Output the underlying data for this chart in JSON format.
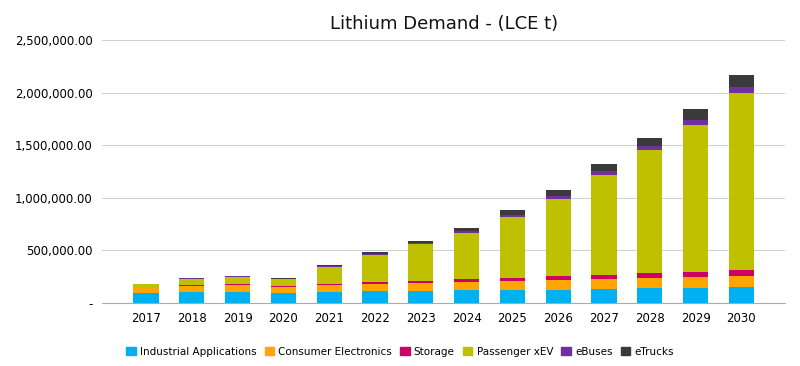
{
  "title": "Lithium Demand - (LCE t)",
  "years": [
    2017,
    2018,
    2019,
    2020,
    2021,
    2022,
    2023,
    2024,
    2025,
    2026,
    2027,
    2028,
    2029,
    2030
  ],
  "categories": [
    "Industrial Applications",
    "Consumer Electronics",
    "Storage",
    "Passenger xEV",
    "eBuses",
    "eTrucks"
  ],
  "colors": [
    "#00b0f0",
    "#ffa500",
    "#cc0066",
    "#bfc000",
    "#7030a0",
    "#3a3a3a"
  ],
  "data": {
    "Industrial Applications": [
      95000,
      105000,
      105000,
      95000,
      105000,
      110000,
      115000,
      120000,
      120000,
      125000,
      130000,
      135000,
      140000,
      145000
    ],
    "Consumer Electronics": [
      45000,
      55000,
      60000,
      55000,
      60000,
      70000,
      75000,
      80000,
      85000,
      90000,
      95000,
      100000,
      105000,
      110000
    ],
    "Storage": [
      4000,
      7000,
      8000,
      6000,
      10000,
      15000,
      20000,
      25000,
      28000,
      35000,
      40000,
      45000,
      50000,
      55000
    ],
    "Passenger xEV": [
      30000,
      60000,
      70000,
      65000,
      165000,
      260000,
      345000,
      440000,
      580000,
      740000,
      950000,
      1170000,
      1400000,
      1690000
    ],
    "eBuses": [
      4000,
      6000,
      8000,
      6000,
      10000,
      13000,
      16000,
      20000,
      25000,
      30000,
      35000,
      40000,
      45000,
      50000
    ],
    "eTrucks": [
      2000,
      4000,
      5000,
      4000,
      6000,
      10000,
      18000,
      25000,
      40000,
      55000,
      70000,
      80000,
      100000,
      120000
    ]
  },
  "ylim": [
    0,
    2500000
  ],
  "yticks": [
    0,
    500000,
    1000000,
    1500000,
    2000000,
    2500000
  ],
  "background_color": "#ffffff",
  "grid_color": "#d0d0d0",
  "title_fontsize": 13,
  "bar_width": 0.55
}
